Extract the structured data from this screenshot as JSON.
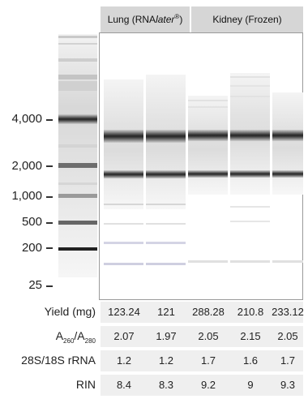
{
  "groups": [
    {
      "label_main": "Lung (RNA",
      "label_italic": "later",
      "label_sup": "®",
      "label_end": ")"
    },
    {
      "label": "Kidney (Frozen)"
    }
  ],
  "ladder": {
    "sizes": [
      "4,000",
      "2,000",
      "1,000",
      "500",
      "200",
      "25"
    ]
  },
  "metrics": {
    "yield": {
      "label": "Yield (mg)",
      "values": [
        "123.24",
        "121",
        "288.28",
        "210.8",
        "233.12"
      ]
    },
    "ratio": {
      "label_a": "A",
      "label_sub1": "260",
      "label_slash": "/A",
      "label_sub2": "280",
      "values": [
        "2.07",
        "1.97",
        "2.05",
        "2.15",
        "2.05"
      ]
    },
    "rrna": {
      "label": "28S/18S rRNA",
      "values": [
        "1.2",
        "1.2",
        "1.7",
        "1.6",
        "1.7"
      ]
    },
    "rin": {
      "label": "RIN",
      "values": [
        "8.4",
        "8.3",
        "9.2",
        "9",
        "9.3"
      ]
    }
  }
}
